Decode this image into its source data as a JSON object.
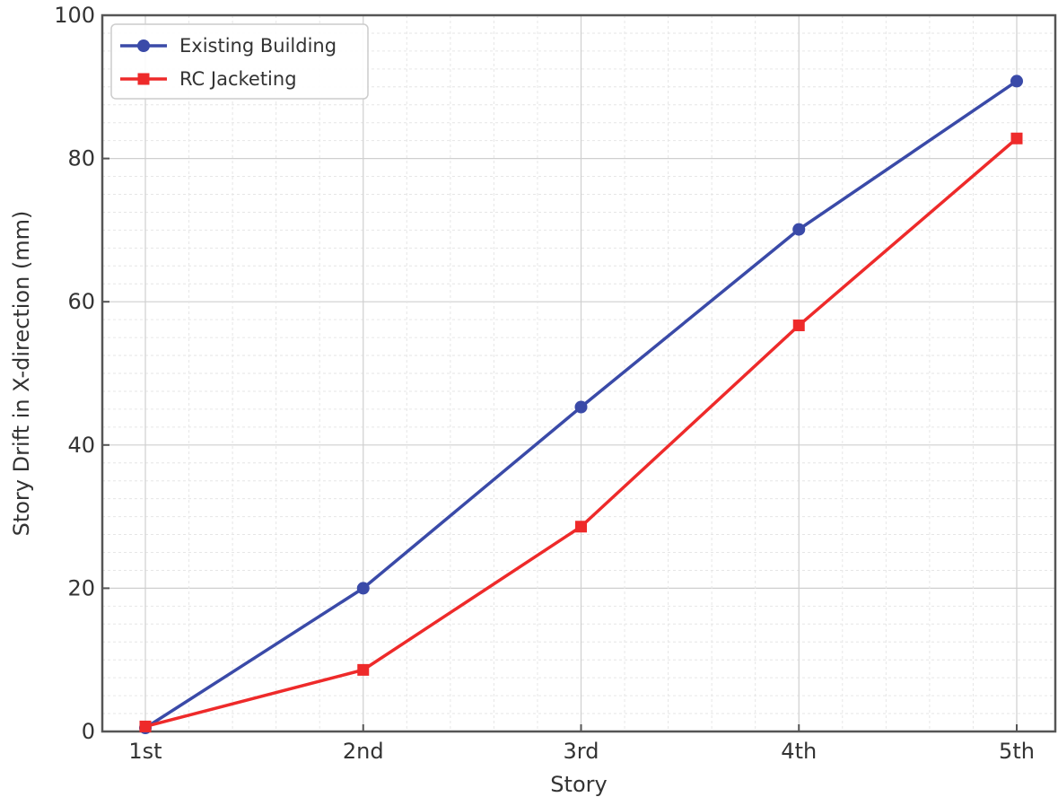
{
  "chart_data": {
    "type": "line",
    "title": "",
    "xlabel": "Story",
    "ylabel": "Story Drift in X-direction (mm)",
    "categories": [
      "1st",
      "2nd",
      "3rd",
      "4th",
      "5th"
    ],
    "ylim": [
      0,
      100
    ],
    "yticks": [
      0,
      20,
      40,
      60,
      80,
      100
    ],
    "grid": true,
    "legend_position": "top-left",
    "series": [
      {
        "name": "Existing Building",
        "color": "#3a4aa8",
        "marker": "circle",
        "values": [
          0.5,
          20,
          45.3,
          70.1,
          90.8
        ]
      },
      {
        "name": "RC Jacketing",
        "color": "#ee2a2a",
        "marker": "square",
        "values": [
          0.7,
          8.6,
          28.6,
          56.7,
          82.8
        ]
      }
    ]
  }
}
